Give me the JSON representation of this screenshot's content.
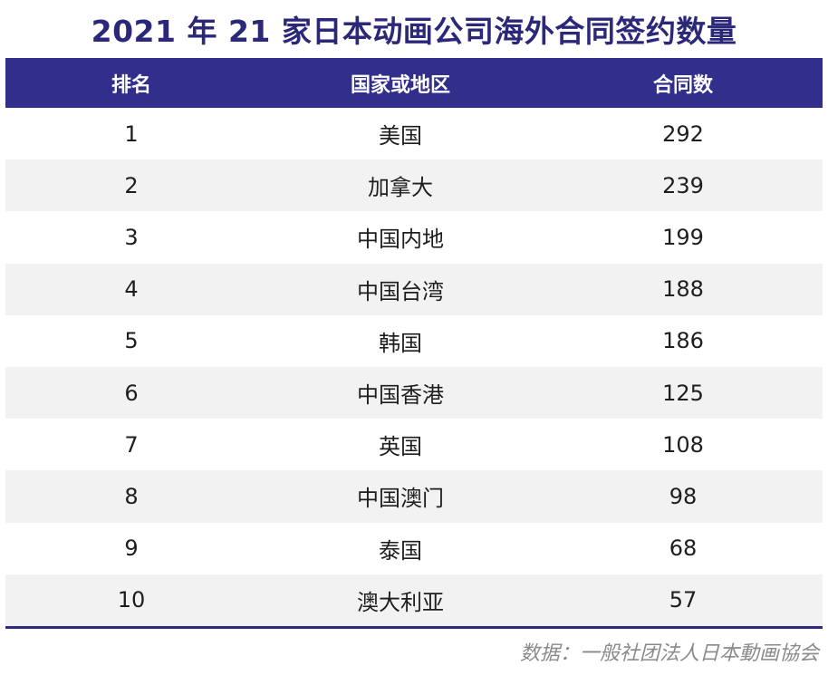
{
  "title": "2021 年 21 家日本动画公司海外合同签约数量",
  "table": {
    "headers": {
      "rank": "排名",
      "region": "国家或地区",
      "count": "合同数"
    },
    "rows": [
      {
        "rank": "1",
        "region": "美国",
        "count": "292"
      },
      {
        "rank": "2",
        "region": "加拿大",
        "count": "239"
      },
      {
        "rank": "3",
        "region": "中国内地",
        "count": "199"
      },
      {
        "rank": "4",
        "region": "中国台湾",
        "count": "188"
      },
      {
        "rank": "5",
        "region": "韩国",
        "count": "186"
      },
      {
        "rank": "6",
        "region": "中国香港",
        "count": "125"
      },
      {
        "rank": "7",
        "region": "英国",
        "count": "108"
      },
      {
        "rank": "8",
        "region": "中国澳门",
        "count": "98"
      },
      {
        "rank": "9",
        "region": "泰国",
        "count": "68"
      },
      {
        "rank": "10",
        "region": "澳大利亚",
        "count": "57"
      }
    ]
  },
  "source": "数据：一般社团法人日本動画協会",
  "colors": {
    "header_bg": "#322f8c",
    "title": "#2b2779",
    "alt_row": "#f2f2f2"
  }
}
